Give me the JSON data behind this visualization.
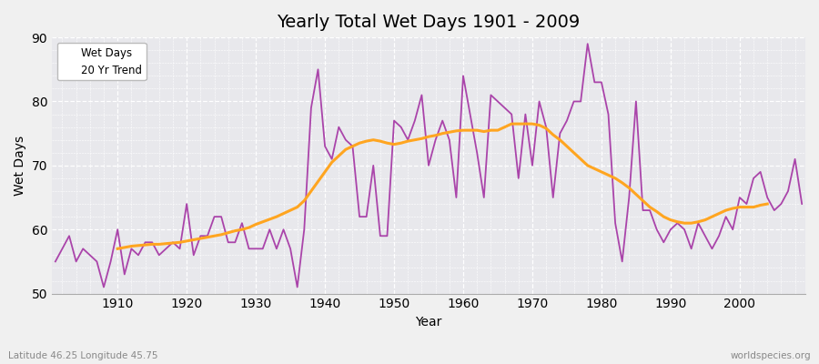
{
  "title": "Yearly Total Wet Days 1901 - 2009",
  "xlabel": "Year",
  "ylabel": "Wet Days",
  "subtitle": "Latitude 46.25 Longitude 45.75",
  "watermark": "worldspecies.org",
  "ylim": [
    50,
    90
  ],
  "yticks": [
    50,
    60,
    70,
    80,
    90
  ],
  "xticks": [
    1910,
    1920,
    1930,
    1940,
    1950,
    1960,
    1970,
    1980,
    1990,
    2000
  ],
  "wet_days_color": "#AA44AA",
  "trend_color": "#FFA520",
  "plot_bg_color": "#E8E8EC",
  "fig_bg_color": "#F0F0F0",
  "legend_wet": "Wet Days",
  "legend_trend": "20 Yr Trend",
  "years": [
    1901,
    1902,
    1903,
    1904,
    1905,
    1906,
    1907,
    1908,
    1909,
    1910,
    1911,
    1912,
    1913,
    1914,
    1915,
    1916,
    1917,
    1918,
    1919,
    1920,
    1921,
    1922,
    1923,
    1924,
    1925,
    1926,
    1927,
    1928,
    1929,
    1930,
    1931,
    1932,
    1933,
    1934,
    1935,
    1936,
    1937,
    1938,
    1939,
    1940,
    1941,
    1942,
    1943,
    1944,
    1945,
    1946,
    1947,
    1948,
    1949,
    1950,
    1951,
    1952,
    1953,
    1954,
    1955,
    1956,
    1957,
    1958,
    1959,
    1960,
    1961,
    1962,
    1963,
    1964,
    1965,
    1966,
    1967,
    1968,
    1969,
    1970,
    1971,
    1972,
    1973,
    1974,
    1975,
    1976,
    1977,
    1978,
    1979,
    1980,
    1981,
    1982,
    1983,
    1984,
    1985,
    1986,
    1987,
    1988,
    1989,
    1990,
    1991,
    1992,
    1993,
    1994,
    1995,
    1996,
    1997,
    1998,
    1999,
    2000,
    2001,
    2002,
    2003,
    2004,
    2005,
    2006,
    2007,
    2008,
    2009
  ],
  "wet_days": [
    55,
    57,
    59,
    55,
    57,
    56,
    55,
    51,
    55,
    60,
    53,
    57,
    56,
    58,
    58,
    56,
    57,
    58,
    57,
    64,
    56,
    59,
    59,
    62,
    62,
    58,
    58,
    61,
    57,
    57,
    57,
    60,
    57,
    60,
    57,
    51,
    60,
    79,
    85,
    73,
    71,
    76,
    74,
    73,
    62,
    62,
    70,
    59,
    59,
    77,
    76,
    74,
    77,
    81,
    70,
    74,
    77,
    74,
    65,
    84,
    78,
    72,
    65,
    81,
    80,
    79,
    78,
    68,
    78,
    70,
    80,
    76,
    65,
    75,
    77,
    80,
    80,
    89,
    83,
    83,
    78,
    61,
    55,
    65,
    80,
    63,
    63,
    60,
    58,
    60,
    61,
    60,
    57,
    61,
    59,
    57,
    59,
    62,
    60,
    65,
    64,
    68,
    69,
    65,
    63,
    64,
    66,
    71,
    64
  ],
  "trend": [
    null,
    null,
    null,
    null,
    null,
    null,
    null,
    null,
    null,
    57.0,
    57.2,
    57.4,
    57.5,
    57.6,
    57.7,
    57.7,
    57.8,
    57.9,
    58.0,
    58.2,
    58.4,
    58.6,
    58.8,
    59.0,
    59.2,
    59.5,
    59.8,
    60.0,
    60.3,
    60.8,
    61.2,
    61.6,
    62.0,
    62.5,
    63.0,
    63.5,
    64.5,
    66.0,
    67.5,
    69.0,
    70.5,
    71.5,
    72.5,
    73.0,
    73.5,
    73.8,
    74.0,
    73.8,
    73.5,
    73.3,
    73.5,
    73.8,
    74.0,
    74.2,
    74.5,
    74.7,
    75.0,
    75.2,
    75.4,
    75.5,
    75.5,
    75.5,
    75.3,
    75.5,
    75.5,
    76.0,
    76.5,
    76.5,
    76.5,
    76.5,
    76.3,
    75.8,
    74.8,
    74.0,
    73.0,
    72.0,
    71.0,
    70.0,
    69.5,
    69.0,
    68.5,
    68.0,
    67.3,
    66.5,
    65.5,
    64.5,
    63.5,
    62.8,
    62.0,
    61.5,
    61.2,
    61.0,
    61.0,
    61.2,
    61.5,
    62.0,
    62.5,
    63.0,
    63.3,
    63.5,
    63.5,
    63.5,
    63.8,
    64.0,
    null,
    null,
    null,
    null,
    null
  ]
}
